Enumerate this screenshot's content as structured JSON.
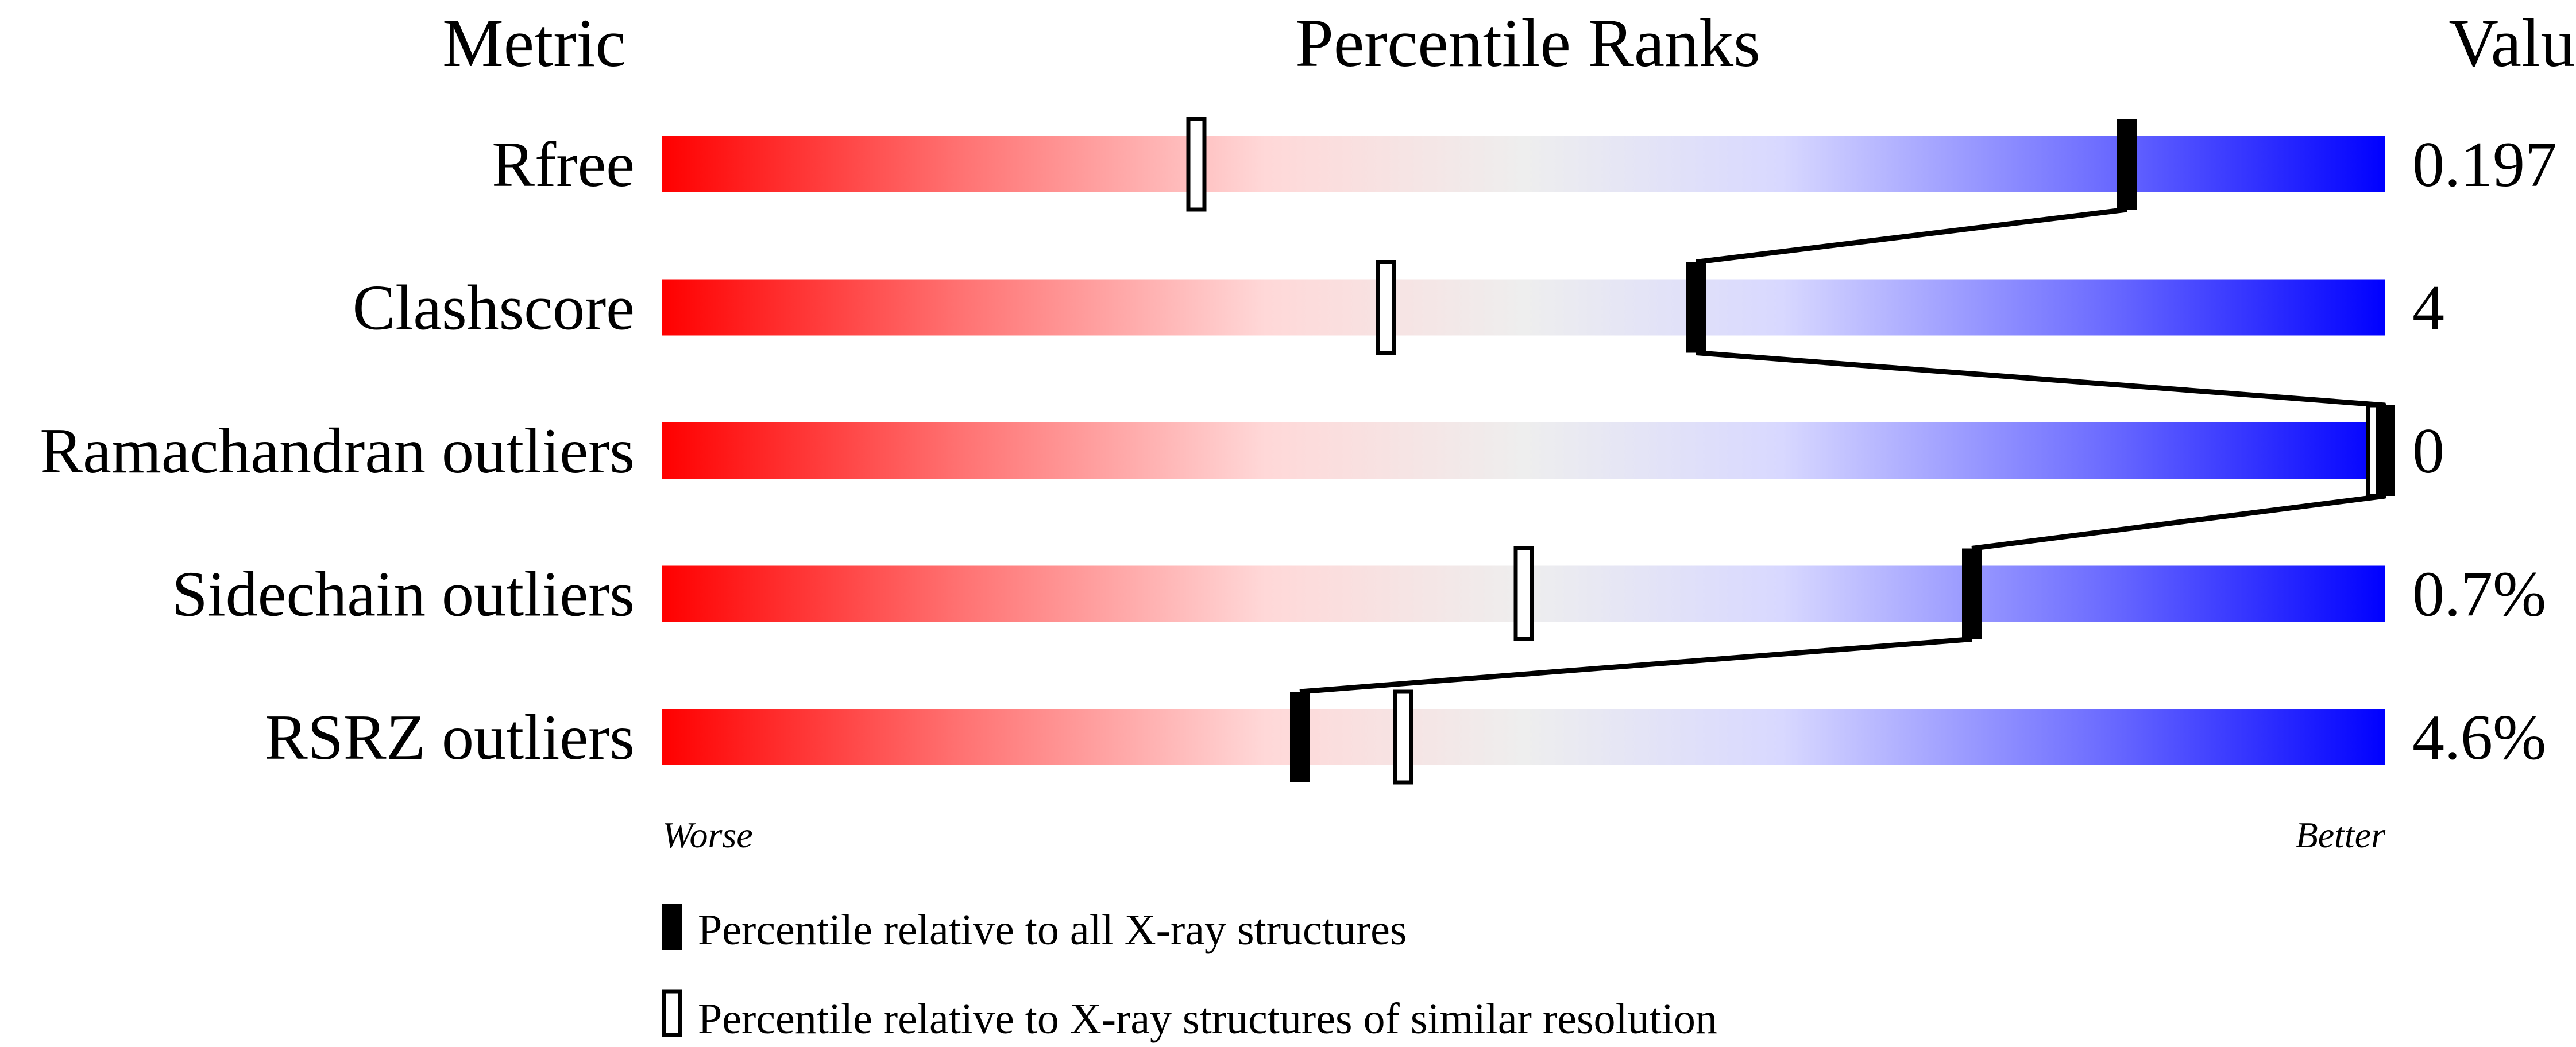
{
  "chart_data": {
    "type": "bar",
    "headers": {
      "metric": "Metric",
      "ranks": "Percentile Ranks",
      "value": "Value"
    },
    "xlim": [
      0,
      100
    ],
    "axis_labels": {
      "worse": "Worse",
      "better": "Better"
    },
    "gradient_colors": [
      "#ff0000",
      "#ff7070",
      "#ffd8d8",
      "#eeeeee",
      "#d8d8ff",
      "#7070ff",
      "#0000ff"
    ],
    "metrics": [
      {
        "name": "Rfree",
        "value": "0.197",
        "percentile_all": 85,
        "percentile_similar": 31
      },
      {
        "name": "Clashscore",
        "value": "4",
        "percentile_all": 60,
        "percentile_similar": 42
      },
      {
        "name": "Ramachandran outliers",
        "value": "0",
        "percentile_all": 100,
        "percentile_similar": 100
      },
      {
        "name": "Sidechain outliers",
        "value": "0.7%",
        "percentile_all": 76,
        "percentile_similar": 50
      },
      {
        "name": "RSRZ outliers",
        "value": "4.6%",
        "percentile_all": 37,
        "percentile_similar": 43
      }
    ],
    "legend": {
      "all": "Percentile relative to all X-ray structures",
      "similar": "Percentile relative to X-ray structures of similar resolution"
    }
  }
}
